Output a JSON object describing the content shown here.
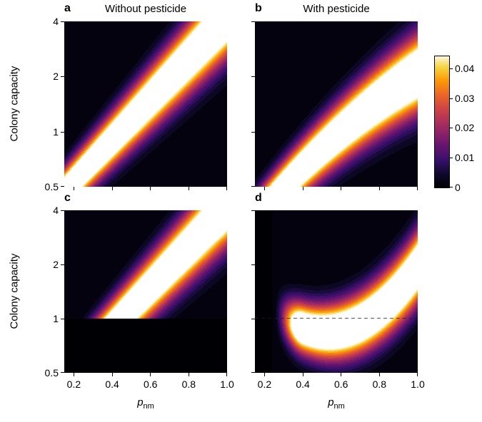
{
  "figure": {
    "titles": {
      "left": "Without pesticide",
      "right": "With pesticide"
    },
    "letters": [
      "a",
      "b",
      "c",
      "d"
    ],
    "axes": {
      "y_label": "Colony capacity",
      "x_label_main": "p",
      "x_label_sub": "nm",
      "x_ticks": {
        "values": [
          0.2,
          0.4,
          0.6,
          0.8,
          1.0
        ],
        "labels": [
          "0.2",
          "0.4",
          "0.6",
          "0.8",
          "1.0"
        ]
      },
      "y_ticks": {
        "values": [
          4,
          2,
          1,
          0.5
        ],
        "labels": [
          "4",
          "2",
          "1",
          "0.5"
        ]
      }
    },
    "colorbar": {
      "range": [
        0,
        0.044
      ],
      "ticks": {
        "values": [
          0,
          0.01,
          0.02,
          0.03,
          0.04
        ],
        "labels": [
          "0",
          "0.01",
          "0.02",
          "0.03",
          "0.04"
        ]
      }
    },
    "colormap": {
      "name": "inferno-to-white",
      "norm_max": 0.045,
      "levels": 20,
      "background": "#000000",
      "stops": [
        [
          0.0,
          "#000004"
        ],
        [
          0.1,
          "#10092d"
        ],
        [
          0.2,
          "#36106b"
        ],
        [
          0.3,
          "#62146e"
        ],
        [
          0.4,
          "#8a226a"
        ],
        [
          0.5,
          "#b1325a"
        ],
        [
          0.6,
          "#d44842"
        ],
        [
          0.7,
          "#ed6925"
        ],
        [
          0.8,
          "#fb9b06"
        ],
        [
          0.9,
          "#f6d543"
        ],
        [
          1.0,
          "#ffffff"
        ]
      ]
    }
  },
  "chart_data": [
    {
      "type": "heatmap",
      "panel": "a",
      "column_title": "Without pesticide",
      "xlabel": "p_nm",
      "ylabel": "Colony capacity",
      "x_range": [
        0.15,
        1.0
      ],
      "y_range": [
        0.5,
        4.0
      ],
      "y_scale": "log2",
      "value_range": [
        0,
        0.045
      ],
      "ridge": {
        "type": "gaussian-ridge",
        "coeffs": [
          -1.63,
          3.7,
          0
        ],
        "width": [
          0.32,
          0.35
        ],
        "peak": 0.068,
        "centerline_points_x_y": [
          [
            0.17,
            0.5
          ],
          [
            0.3,
            0.7
          ],
          [
            0.45,
            1.02
          ],
          [
            0.6,
            1.5
          ],
          [
            0.8,
            2.5
          ],
          [
            0.98,
            4.0
          ]
        ]
      },
      "mask_below_y": null,
      "dashed_line_y": null,
      "fade_x": null
    },
    {
      "type": "heatmap",
      "panel": "b",
      "column_title": "With pesticide",
      "xlabel": "p_nm",
      "ylabel": "Colony capacity",
      "x_range": [
        0.15,
        1.0
      ],
      "y_range": [
        0.5,
        4.0
      ],
      "y_scale": "log2",
      "value_range": [
        0,
        0.045
      ],
      "ridge": {
        "type": "gaussian-ridge",
        "coeffs": [
          -2.182,
          4.244,
          -1.012
        ],
        "width": [
          0.32,
          0.35
        ],
        "peak": 0.068,
        "centerline_points_x_y": [
          [
            0.3,
            0.5
          ],
          [
            0.45,
            0.72
          ],
          [
            0.6,
            1.0
          ],
          [
            0.8,
            1.48
          ],
          [
            1.0,
            2.07
          ]
        ]
      },
      "mask_below_y": null,
      "dashed_line_y": null,
      "fade_x": null
    },
    {
      "type": "heatmap",
      "panel": "c",
      "column_title": "Without pesticide",
      "xlabel": "p_nm",
      "ylabel": "Colony capacity",
      "x_range": [
        0.15,
        1.0
      ],
      "y_range": [
        0.5,
        4.0
      ],
      "y_scale": "log2",
      "value_range": [
        0,
        0.045
      ],
      "ridge": {
        "type": "gaussian-ridge",
        "coeffs": [
          -1.63,
          3.7,
          0
        ],
        "width": [
          0.32,
          0.35
        ],
        "peak": 0.068,
        "centerline_points_x_y": [
          [
            0.45,
            1.02
          ],
          [
            0.6,
            1.5
          ],
          [
            0.8,
            2.5
          ],
          [
            0.98,
            4.0
          ]
        ]
      },
      "mask_below_y": 1,
      "dashed_line_y": null,
      "fade_x": null
    },
    {
      "type": "heatmap",
      "panel": "d",
      "column_title": "With pesticide",
      "xlabel": "p_nm",
      "ylabel": "Colony capacity",
      "x_range": [
        0.15,
        1.0
      ],
      "y_range": [
        0.5,
        4.0
      ],
      "y_scale": "log2",
      "value_range": [
        0,
        0.045
      ],
      "ridge": {
        "type": "gaussian-ridge",
        "coeffs": [
          1.164,
          -5.452,
          5.238
        ],
        "width": [
          0.32,
          0.3
        ],
        "peak": 0.068,
        "centerline_points_x_y": [
          [
            0.3,
            1.0
          ],
          [
            0.4,
            0.88
          ],
          [
            0.52,
            0.84
          ],
          [
            0.75,
            1.01
          ],
          [
            0.88,
            1.34
          ],
          [
            1.0,
            1.93
          ]
        ]
      },
      "mask_below_y": null,
      "dashed_line_y": 1,
      "fade_x": [
        0.24,
        0.4
      ]
    }
  ]
}
